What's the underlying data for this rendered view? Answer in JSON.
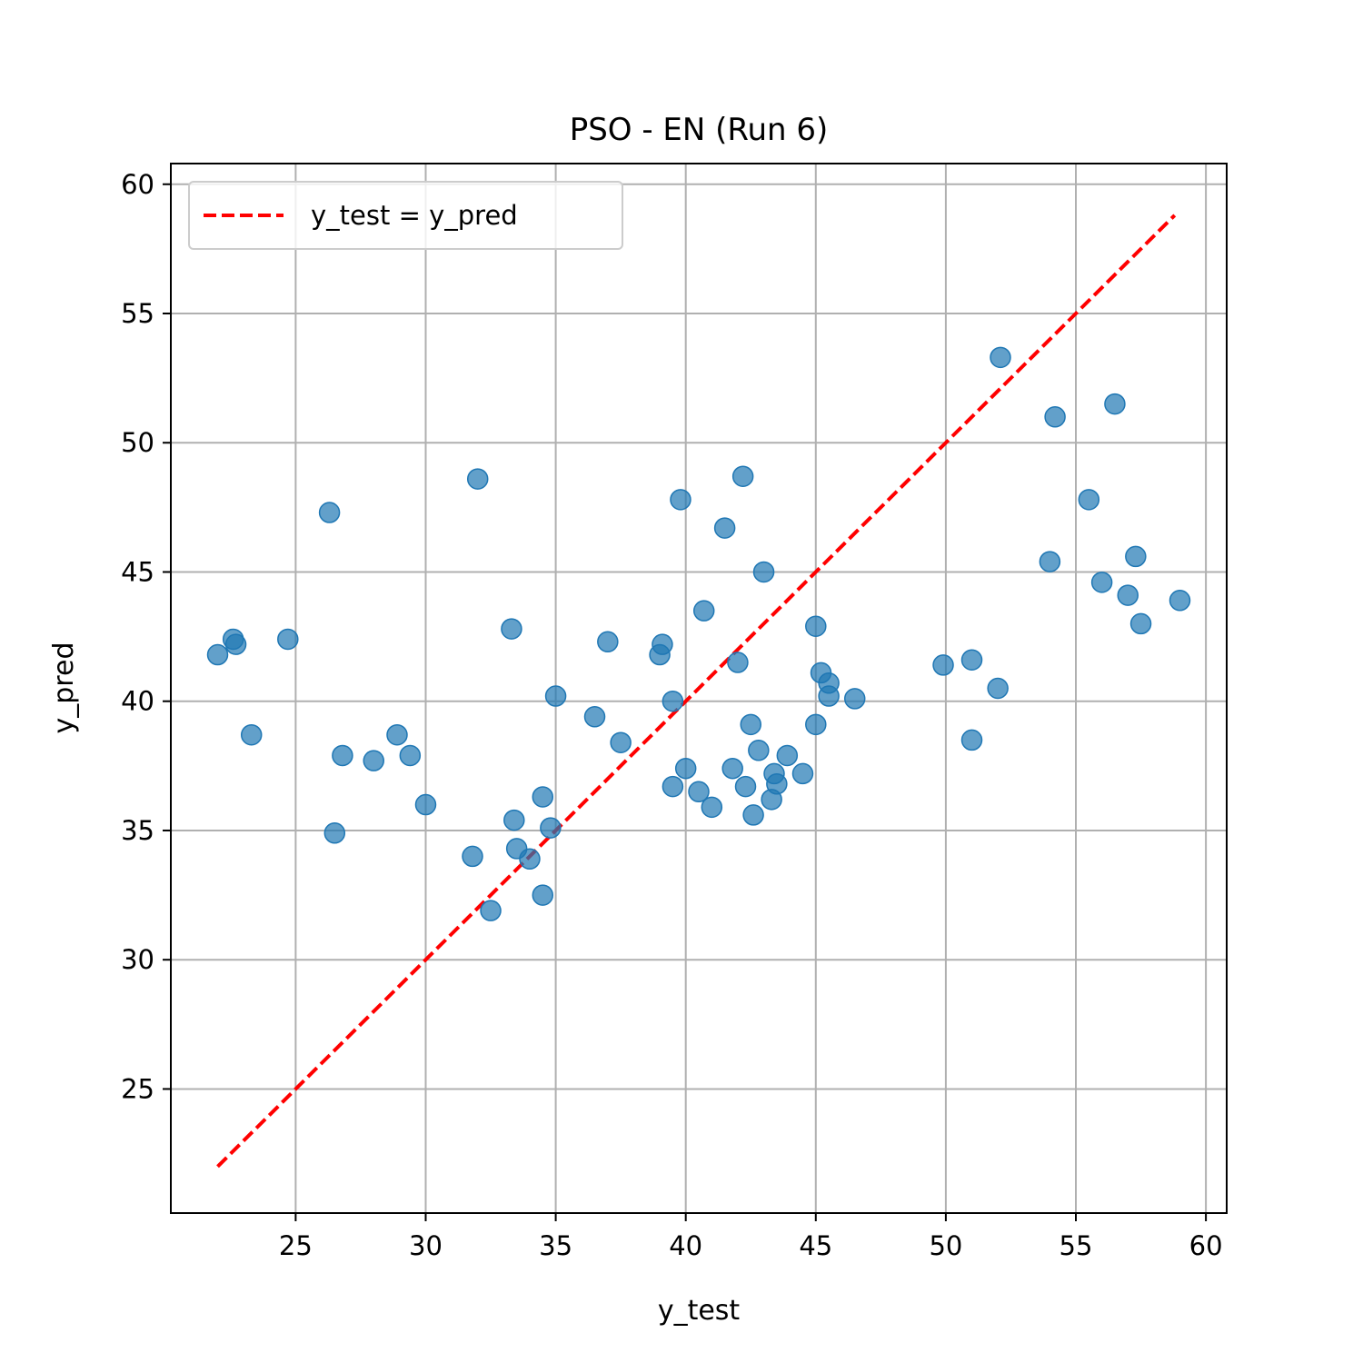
{
  "chart_data": {
    "type": "scatter",
    "title": "PSO - EN (Run 6)",
    "xlabel": "y_test",
    "ylabel": "y_pred",
    "xlim": [
      20.2,
      60.8
    ],
    "ylim": [
      20.2,
      60.8
    ],
    "xticks": [
      25,
      30,
      35,
      40,
      45,
      50,
      55,
      60
    ],
    "yticks": [
      25,
      30,
      35,
      40,
      45,
      50,
      55,
      60
    ],
    "grid": true,
    "legend": {
      "position": "upper-left",
      "entries": [
        "y_test = y_pred"
      ]
    },
    "colors": {
      "points": "#1f77b4",
      "reference_line": "#ff0000",
      "grid": "#b0b0b0"
    },
    "reference_line": {
      "name": "y_test = y_pred",
      "x": [
        22.0,
        58.8
      ],
      "y": [
        22.0,
        58.8
      ]
    },
    "series": [
      {
        "points": [
          [
            22.0,
            41.8
          ],
          [
            22.6,
            42.4
          ],
          [
            22.7,
            42.2
          ],
          [
            23.3,
            38.7
          ],
          [
            24.7,
            42.4
          ],
          [
            26.3,
            47.3
          ],
          [
            26.5,
            34.9
          ],
          [
            26.8,
            37.9
          ],
          [
            28.0,
            37.7
          ],
          [
            28.9,
            38.7
          ],
          [
            29.4,
            37.9
          ],
          [
            30.0,
            36.0
          ],
          [
            31.8,
            34.0
          ],
          [
            32.0,
            48.6
          ],
          [
            32.5,
            31.9
          ],
          [
            33.3,
            42.8
          ],
          [
            33.4,
            35.4
          ],
          [
            33.5,
            34.3
          ],
          [
            34.0,
            33.9
          ],
          [
            34.5,
            32.5
          ],
          [
            34.5,
            36.3
          ],
          [
            34.8,
            35.1
          ],
          [
            35.0,
            40.2
          ],
          [
            36.5,
            39.4
          ],
          [
            37.0,
            42.3
          ],
          [
            37.5,
            38.4
          ],
          [
            39.0,
            41.8
          ],
          [
            39.1,
            42.2
          ],
          [
            39.5,
            36.7
          ],
          [
            39.5,
            40.0
          ],
          [
            39.8,
            47.8
          ],
          [
            40.0,
            37.4
          ],
          [
            40.5,
            36.5
          ],
          [
            40.7,
            43.5
          ],
          [
            41.0,
            35.9
          ],
          [
            41.5,
            46.7
          ],
          [
            41.8,
            37.4
          ],
          [
            42.0,
            41.5
          ],
          [
            42.2,
            48.7
          ],
          [
            42.3,
            36.7
          ],
          [
            42.5,
            39.1
          ],
          [
            42.6,
            35.6
          ],
          [
            42.8,
            38.1
          ],
          [
            43.0,
            45.0
          ],
          [
            43.3,
            36.2
          ],
          [
            43.4,
            37.2
          ],
          [
            43.5,
            36.8
          ],
          [
            43.9,
            37.9
          ],
          [
            44.5,
            37.2
          ],
          [
            45.0,
            39.1
          ],
          [
            45.0,
            42.9
          ],
          [
            45.2,
            41.1
          ],
          [
            45.5,
            40.7
          ],
          [
            45.5,
            40.2
          ],
          [
            46.5,
            40.1
          ],
          [
            49.9,
            41.4
          ],
          [
            51.0,
            41.6
          ],
          [
            51.0,
            38.5
          ],
          [
            52.0,
            40.5
          ],
          [
            52.1,
            53.3
          ],
          [
            54.0,
            45.4
          ],
          [
            54.2,
            51.0
          ],
          [
            55.5,
            47.8
          ],
          [
            56.0,
            44.6
          ],
          [
            56.5,
            51.5
          ],
          [
            57.0,
            44.1
          ],
          [
            57.3,
            45.6
          ],
          [
            57.5,
            43.0
          ],
          [
            59.0,
            43.9
          ]
        ]
      }
    ]
  }
}
